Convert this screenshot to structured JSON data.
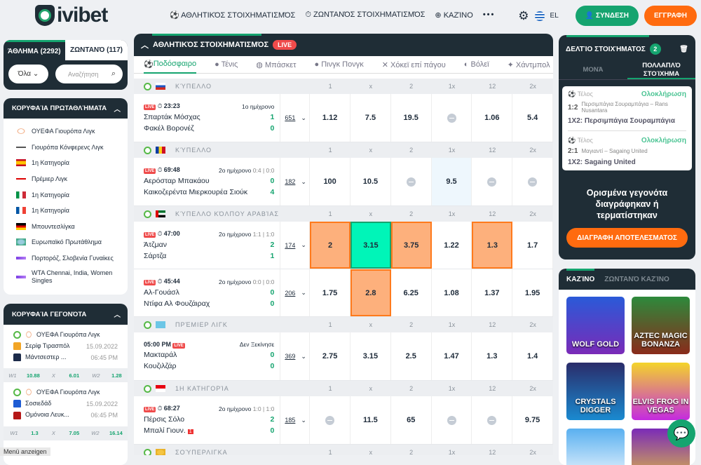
{
  "header": {
    "brand": "ivibet",
    "nav": [
      "ΑΘΛΗΤΙΚΌΣ ΣΤΟΙΧΗΜΑΤΙΣΜΌΣ",
      "ΖΩΝΤΑΝΌΣ ΣΤΟΙΧΗΜΑΤΙΣΜΌΣ",
      "ΚΑΖΊΝΟ"
    ],
    "more": "•••",
    "lang": "EL",
    "login": "ΣΥΝΔΕΣΗ",
    "register": "ΕΓΓΡΑΦΗ"
  },
  "sports_panel": {
    "tab_sport": "ΆΘΛΗΜΑ (2292)",
    "tab_live": "ΖΩΝΤΑΝΌ (117)",
    "filter": "Όλα",
    "search_placeholder": "Αναζήτηση"
  },
  "top_leagues": {
    "title": "ΚΟΡΥΦΑΊΑ ΠΡΩΤΑΘΛΉΜΑΤΑ",
    "items": [
      "ΟΥΕΦΑ Γιουρόπα Λιγκ",
      "Γιουρόπα Κόνφερενς Λιγκ",
      "1η Κατηγορία",
      "Πρέμιερ Λιγκ",
      "1η Κατηγορία",
      "1η Κατηγορία",
      "Μπουντεσλίγκα",
      "Ευρωπαϊκό Πρωτάθλημα",
      "Πορτορόζ, Σλοβενία Γυναίκες",
      "WTA Chennai, India, Women Singles"
    ]
  },
  "top_events": {
    "title": "ΚΟΡΥΦΑΊΑ ΓΕΓΟΝΌΤΑ",
    "events": [
      {
        "league": "ΟΥΕΦΑ Γιουρόπα Λιγκ",
        "home": "Σερίφ Τιρασπόλ",
        "away": "Μάντσεστερ ...",
        "date": "15.09.2022",
        "time": "06:45 PM",
        "w1": "10.88",
        "x": "6.01",
        "w2": "1.28",
        "l1": "W1",
        "lx": "X",
        "l2": "W2"
      },
      {
        "league": "ΟΥΕΦΑ Γιουρόπα Λιγκ",
        "home": "Σοσιεδάδ",
        "away": "Ομόνοια Λευκ...",
        "date": "15.09.2022",
        "time": "06:45 PM",
        "w1": "1.3",
        "x": "7.05",
        "w2": "16.14",
        "l1": "W1",
        "lx": "X",
        "l2": "W2"
      }
    ]
  },
  "footer_label": "Menü anzeigen",
  "main": {
    "title": "ΑΘΛΗΤΙΚΌΣ ΣΤΟΙΧΗΜΑΤΙΣΜΌΣ",
    "live": "LIVE",
    "tabs": [
      "Ποδόσφαιρο",
      "Τένις",
      "Μπάσκετ",
      "Πινγκ Πονγκ",
      "Χόκεϊ επί πάγου",
      "Βόλεϊ",
      "Χάντμπολ"
    ],
    "cols": [
      "1",
      "x",
      "2",
      "1x",
      "12",
      "2x"
    ],
    "live_badge": "LIVE",
    "sections": [
      {
        "league": "ΚΎΠΕΛΛΟ",
        "flag": "ru",
        "matches": [
          {
            "time": "23:23",
            "period": "1ο ημίχρονο",
            "extra": "",
            "home": "Σπαρτάκ Μόσχας",
            "away": "Φακέλ Βορονέζ",
            "hs": "1",
            "as": "0",
            "markets": "651",
            "odds": [
              "1.12",
              "7.5",
              "19.5",
              "-",
              "1.06",
              "5.4"
            ],
            "states": [
              "",
              "",
              "",
              "",
              "",
              ""
            ]
          }
        ]
      },
      {
        "league": "ΚΎΠΕΛΛΟ",
        "flag": "ro",
        "matches": [
          {
            "time": "69:48",
            "period": "2ο ημίχρονο",
            "extra": "0:4 | 0:0",
            "home": "Αερόσταρ Μπακάου",
            "away": "Καικοζερέντα Μιερκουρέα Σιούκ",
            "hs": "0",
            "as": "4",
            "markets": "182",
            "odds": [
              "100",
              "10.5",
              "-",
              "9.5",
              "-",
              "-"
            ],
            "states": [
              "",
              "",
              "",
              "hl",
              "",
              ""
            ]
          }
        ]
      },
      {
        "league": "ΚΎΠΕΛΛΟ ΚΌΛΠΟΥ ΑΡΑΒΊΑΣ",
        "flag": "ae",
        "matches": [
          {
            "time": "47:00",
            "period": "2ο ημίχρονο",
            "extra": "1:1 | 1:0",
            "home": "Άτζμαν",
            "away": "Σάρτζα",
            "hs": "2",
            "as": "1",
            "markets": "174",
            "odds": [
              "2",
              "3.15",
              "3.75",
              "1.22",
              "1.3",
              "1.7"
            ],
            "states": [
              "sel",
              "win",
              "sel",
              "",
              "sel",
              ""
            ]
          },
          {
            "time": "45:44",
            "period": "2ο ημίχρονο",
            "extra": "0:0 | 0:0",
            "home": "Αλ-Γουάσλ",
            "away": "Ντίφα Αλ Φουζάιραχ",
            "hs": "0",
            "as": "0",
            "markets": "206",
            "odds": [
              "1.75",
              "2.8",
              "6.25",
              "1.08",
              "1.37",
              "1.95"
            ],
            "states": [
              "",
              "sel",
              "",
              "",
              "",
              ""
            ]
          }
        ]
      },
      {
        "league": "ΠΡΈΜΙΕΡ ΛΙΓΚ",
        "flag": "kz",
        "matches": [
          {
            "time": "05:00 PM",
            "prematch": true,
            "period": "Δεν Ξεκίνησε",
            "extra": "",
            "home": "Μακταράλ",
            "away": "Κουζιλζάρ",
            "hs": "0",
            "as": "0",
            "markets": "369",
            "odds": [
              "2.75",
              "3.15",
              "2.5",
              "1.47",
              "1.3",
              "1.4"
            ],
            "states": [
              "",
              "",
              "",
              "",
              "",
              ""
            ]
          }
        ]
      },
      {
        "league": "1Η ΚΑΤΗΓΟΡΊΑ",
        "flag": "id",
        "matches": [
          {
            "time": "68:27",
            "period": "2ο ημίχρονο",
            "extra": "1:0 | 1:0",
            "home": "Πέρσις Σόλο",
            "away": "Μπαλί Γιουν.",
            "redcard": "1",
            "hs": "2",
            "as": "0",
            "markets": "185",
            "odds": [
              "-",
              "11.5",
              "65",
              "-",
              "-",
              "9.75"
            ],
            "states": [
              "",
              "",
              "",
              "",
              "",
              ""
            ]
          }
        ]
      },
      {
        "league": "ΣΟΎΠΕΡΛΙΓΚΑ",
        "flag": "cup",
        "matches": []
      }
    ]
  },
  "betslip": {
    "title": "ΔΕΛΤΊΟ ΣΤΟΙΧΉΜΑΤΟΣ",
    "count": "2",
    "tab_single": "ΜΟΝΆ",
    "tab_multi": "ΠΟΛΛΑΠΛΌ ΣΤΟΊΧΗΜΑ",
    "bets": [
      {
        "status": "Τέλος",
        "result": "Ολοκλήρωση",
        "score": "1:2",
        "match": "Περσιμπάγια Σουραμπάγια – Rans Nusantara",
        "pick": "1X2: Περσιμπάγια Σουραμπάγια"
      },
      {
        "status": "Τέλος",
        "result": "Ολοκλήρωση",
        "score": "2:1",
        "match": "Μαγιαντί – Sagaing United",
        "pick": "1X2: Sagaing United"
      }
    ],
    "notice": "Ορισμένα γεγονότα διαγράφηκαν ή τερματίστηκαν",
    "delete": "ΔΙΑΓΡΑΦΗ ΑΠΟΤΕΛΕΣΜΑΤΟΣ"
  },
  "casino": {
    "tab_casino": "ΚΑΖΊΝΟ",
    "tab_live": "ΖΩΝΤΑΝΌ ΚΑΖΊΝΟ",
    "games": [
      "WOLF GOLD",
      "AZTEC MAGIC BONANZA",
      "CRYSTALS DIGGER",
      "ELVIS FROG IN VEGAS",
      "",
      ""
    ]
  },
  "colors": {
    "green": "#15a46f",
    "orange": "#ff6b0f",
    "dark": "#1f2d36",
    "live": "#ef4b4b"
  }
}
